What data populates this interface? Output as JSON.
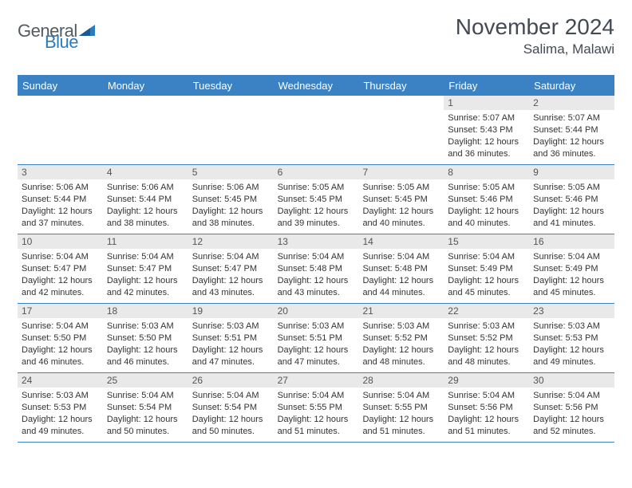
{
  "logo": {
    "text_gray": "General",
    "text_blue": "Blue"
  },
  "title": "November 2024",
  "location": "Salima, Malawi",
  "colors": {
    "header_bg": "#3a82c4",
    "header_text": "#ffffff",
    "daynum_bg": "#e9e9e9",
    "text": "#333333",
    "logo_gray": "#555b63",
    "logo_blue": "#2b7bbf",
    "page_bg": "#ffffff"
  },
  "fonts": {
    "title_size": 28,
    "location_size": 17,
    "dayheader_size": 13,
    "cell_size": 11
  },
  "day_headers": [
    "Sunday",
    "Monday",
    "Tuesday",
    "Wednesday",
    "Thursday",
    "Friday",
    "Saturday"
  ],
  "weeks": [
    [
      {
        "day": "",
        "sunrise": "",
        "sunset": "",
        "daylight": ""
      },
      {
        "day": "",
        "sunrise": "",
        "sunset": "",
        "daylight": ""
      },
      {
        "day": "",
        "sunrise": "",
        "sunset": "",
        "daylight": ""
      },
      {
        "day": "",
        "sunrise": "",
        "sunset": "",
        "daylight": ""
      },
      {
        "day": "",
        "sunrise": "",
        "sunset": "",
        "daylight": ""
      },
      {
        "day": "1",
        "sunrise": "Sunrise: 5:07 AM",
        "sunset": "Sunset: 5:43 PM",
        "daylight": "Daylight: 12 hours and 36 minutes."
      },
      {
        "day": "2",
        "sunrise": "Sunrise: 5:07 AM",
        "sunset": "Sunset: 5:44 PM",
        "daylight": "Daylight: 12 hours and 36 minutes."
      }
    ],
    [
      {
        "day": "3",
        "sunrise": "Sunrise: 5:06 AM",
        "sunset": "Sunset: 5:44 PM",
        "daylight": "Daylight: 12 hours and 37 minutes."
      },
      {
        "day": "4",
        "sunrise": "Sunrise: 5:06 AM",
        "sunset": "Sunset: 5:44 PM",
        "daylight": "Daylight: 12 hours and 38 minutes."
      },
      {
        "day": "5",
        "sunrise": "Sunrise: 5:06 AM",
        "sunset": "Sunset: 5:45 PM",
        "daylight": "Daylight: 12 hours and 38 minutes."
      },
      {
        "day": "6",
        "sunrise": "Sunrise: 5:05 AM",
        "sunset": "Sunset: 5:45 PM",
        "daylight": "Daylight: 12 hours and 39 minutes."
      },
      {
        "day": "7",
        "sunrise": "Sunrise: 5:05 AM",
        "sunset": "Sunset: 5:45 PM",
        "daylight": "Daylight: 12 hours and 40 minutes."
      },
      {
        "day": "8",
        "sunrise": "Sunrise: 5:05 AM",
        "sunset": "Sunset: 5:46 PM",
        "daylight": "Daylight: 12 hours and 40 minutes."
      },
      {
        "day": "9",
        "sunrise": "Sunrise: 5:05 AM",
        "sunset": "Sunset: 5:46 PM",
        "daylight": "Daylight: 12 hours and 41 minutes."
      }
    ],
    [
      {
        "day": "10",
        "sunrise": "Sunrise: 5:04 AM",
        "sunset": "Sunset: 5:47 PM",
        "daylight": "Daylight: 12 hours and 42 minutes."
      },
      {
        "day": "11",
        "sunrise": "Sunrise: 5:04 AM",
        "sunset": "Sunset: 5:47 PM",
        "daylight": "Daylight: 12 hours and 42 minutes."
      },
      {
        "day": "12",
        "sunrise": "Sunrise: 5:04 AM",
        "sunset": "Sunset: 5:47 PM",
        "daylight": "Daylight: 12 hours and 43 minutes."
      },
      {
        "day": "13",
        "sunrise": "Sunrise: 5:04 AM",
        "sunset": "Sunset: 5:48 PM",
        "daylight": "Daylight: 12 hours and 43 minutes."
      },
      {
        "day": "14",
        "sunrise": "Sunrise: 5:04 AM",
        "sunset": "Sunset: 5:48 PM",
        "daylight": "Daylight: 12 hours and 44 minutes."
      },
      {
        "day": "15",
        "sunrise": "Sunrise: 5:04 AM",
        "sunset": "Sunset: 5:49 PM",
        "daylight": "Daylight: 12 hours and 45 minutes."
      },
      {
        "day": "16",
        "sunrise": "Sunrise: 5:04 AM",
        "sunset": "Sunset: 5:49 PM",
        "daylight": "Daylight: 12 hours and 45 minutes."
      }
    ],
    [
      {
        "day": "17",
        "sunrise": "Sunrise: 5:04 AM",
        "sunset": "Sunset: 5:50 PM",
        "daylight": "Daylight: 12 hours and 46 minutes."
      },
      {
        "day": "18",
        "sunrise": "Sunrise: 5:03 AM",
        "sunset": "Sunset: 5:50 PM",
        "daylight": "Daylight: 12 hours and 46 minutes."
      },
      {
        "day": "19",
        "sunrise": "Sunrise: 5:03 AM",
        "sunset": "Sunset: 5:51 PM",
        "daylight": "Daylight: 12 hours and 47 minutes."
      },
      {
        "day": "20",
        "sunrise": "Sunrise: 5:03 AM",
        "sunset": "Sunset: 5:51 PM",
        "daylight": "Daylight: 12 hours and 47 minutes."
      },
      {
        "day": "21",
        "sunrise": "Sunrise: 5:03 AM",
        "sunset": "Sunset: 5:52 PM",
        "daylight": "Daylight: 12 hours and 48 minutes."
      },
      {
        "day": "22",
        "sunrise": "Sunrise: 5:03 AM",
        "sunset": "Sunset: 5:52 PM",
        "daylight": "Daylight: 12 hours and 48 minutes."
      },
      {
        "day": "23",
        "sunrise": "Sunrise: 5:03 AM",
        "sunset": "Sunset: 5:53 PM",
        "daylight": "Daylight: 12 hours and 49 minutes."
      }
    ],
    [
      {
        "day": "24",
        "sunrise": "Sunrise: 5:03 AM",
        "sunset": "Sunset: 5:53 PM",
        "daylight": "Daylight: 12 hours and 49 minutes."
      },
      {
        "day": "25",
        "sunrise": "Sunrise: 5:04 AM",
        "sunset": "Sunset: 5:54 PM",
        "daylight": "Daylight: 12 hours and 50 minutes."
      },
      {
        "day": "26",
        "sunrise": "Sunrise: 5:04 AM",
        "sunset": "Sunset: 5:54 PM",
        "daylight": "Daylight: 12 hours and 50 minutes."
      },
      {
        "day": "27",
        "sunrise": "Sunrise: 5:04 AM",
        "sunset": "Sunset: 5:55 PM",
        "daylight": "Daylight: 12 hours and 51 minutes."
      },
      {
        "day": "28",
        "sunrise": "Sunrise: 5:04 AM",
        "sunset": "Sunset: 5:55 PM",
        "daylight": "Daylight: 12 hours and 51 minutes."
      },
      {
        "day": "29",
        "sunrise": "Sunrise: 5:04 AM",
        "sunset": "Sunset: 5:56 PM",
        "daylight": "Daylight: 12 hours and 51 minutes."
      },
      {
        "day": "30",
        "sunrise": "Sunrise: 5:04 AM",
        "sunset": "Sunset: 5:56 PM",
        "daylight": "Daylight: 12 hours and 52 minutes."
      }
    ]
  ]
}
